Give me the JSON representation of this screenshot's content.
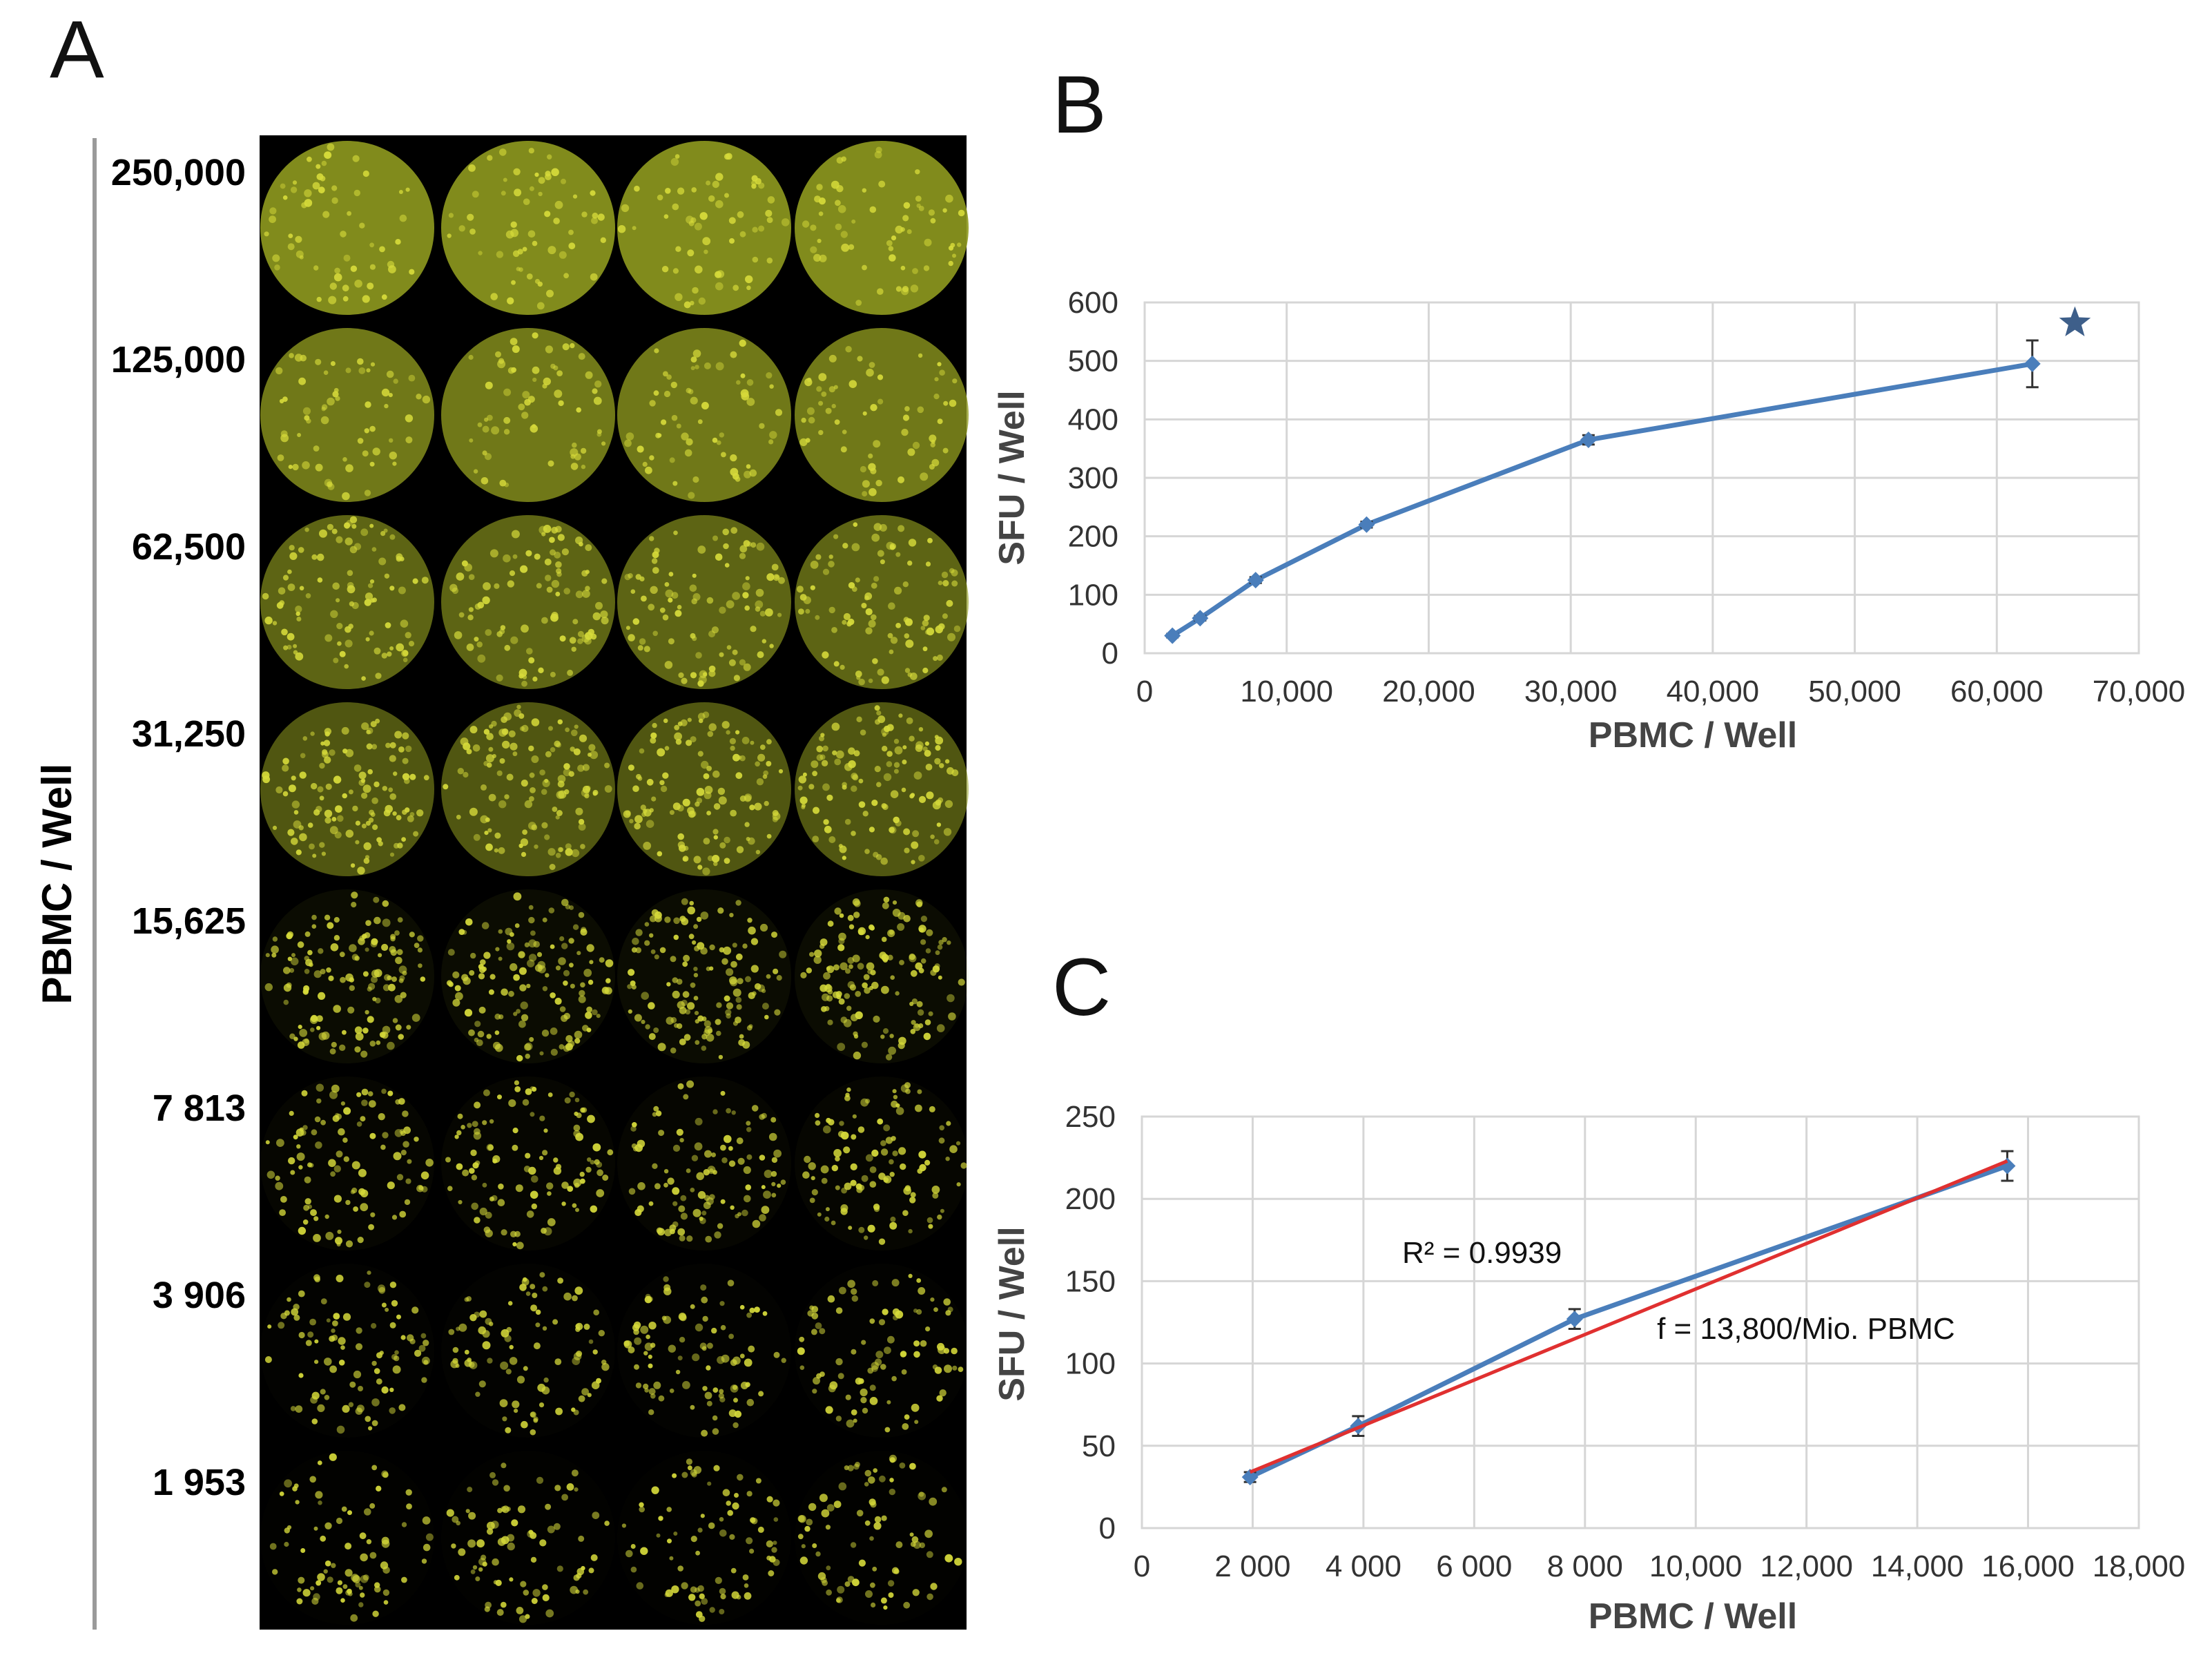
{
  "panel_a": {
    "letter": "A",
    "side_label": "PBMC / Well",
    "row_labels": [
      "250,000",
      "125,000",
      "62,500",
      "31,250",
      "15,625",
      "7 813",
      "3 906",
      "1 953"
    ],
    "columns": 4,
    "colors": {
      "background": "#000000",
      "spot": "#d6da3a",
      "well_fill": "#8f9a1f"
    },
    "density_levels": [
      1.0,
      0.78,
      0.55,
      0.38,
      0.24,
      0.12,
      0.07,
      0.04
    ]
  },
  "chart_data": [
    {
      "panel": "B",
      "type": "line",
      "title": "",
      "xlabel": "PBMC / Well",
      "ylabel": "SFU / Well",
      "xlim": [
        0,
        70000
      ],
      "ylim": [
        0,
        600
      ],
      "x_ticks": [
        0,
        10000,
        20000,
        30000,
        40000,
        50000,
        60000,
        70000
      ],
      "x_tick_labels": [
        "0",
        "10,000",
        "20,000",
        "30,000",
        "40,000",
        "50,000",
        "60,000",
        "70,000"
      ],
      "y_ticks": [
        0,
        100,
        200,
        300,
        400,
        500,
        600
      ],
      "y_tick_labels": [
        "0",
        "100",
        "200",
        "300",
        "400",
        "500",
        "600"
      ],
      "grid": true,
      "series": [
        {
          "name": "SFU",
          "color": "#4a7ebb",
          "x": [
            1953,
            3906,
            7813,
            15625,
            31250,
            62500
          ],
          "y": [
            30,
            60,
            125,
            220,
            365,
            495
          ],
          "error": [
            3,
            4,
            5,
            5,
            8,
            40
          ]
        }
      ],
      "annotations": [
        {
          "type": "star-marker",
          "x": 65500,
          "y": 565,
          "color": "#3e5f8a"
        }
      ]
    },
    {
      "panel": "C",
      "type": "line",
      "title": "",
      "xlabel": "PBMC / Well",
      "ylabel": "SFU / Well",
      "xlim": [
        0,
        18000
      ],
      "ylim": [
        0,
        250
      ],
      "x_ticks": [
        0,
        2000,
        4000,
        6000,
        8000,
        10000,
        12000,
        14000,
        16000,
        18000
      ],
      "x_tick_labels": [
        "0",
        "2 000",
        "4 000",
        "6 000",
        "8 000",
        "10,000",
        "12,000",
        "14,000",
        "16,000",
        "18,000"
      ],
      "y_ticks": [
        0,
        50,
        100,
        150,
        200,
        250
      ],
      "y_tick_labels": [
        "0",
        "50",
        "100",
        "150",
        "200",
        "250"
      ],
      "grid": true,
      "series": [
        {
          "name": "SFU",
          "color": "#4a7ebb",
          "x": [
            1953,
            3906,
            7813,
            15625
          ],
          "y": [
            31,
            62,
            127,
            220
          ],
          "error": [
            3,
            6,
            6,
            9
          ]
        },
        {
          "name": "Linear fit",
          "color": "#e03030",
          "x": [
            1953,
            15625
          ],
          "y": [
            34,
            223
          ],
          "error": null
        }
      ],
      "annotations": [
        {
          "type": "text",
          "text": "R² = 0.9939",
          "x": 4700,
          "y": 161
        },
        {
          "type": "text",
          "text": "f = 13,800/Mio. PBMC",
          "x": 9300,
          "y": 115
        }
      ]
    }
  ]
}
